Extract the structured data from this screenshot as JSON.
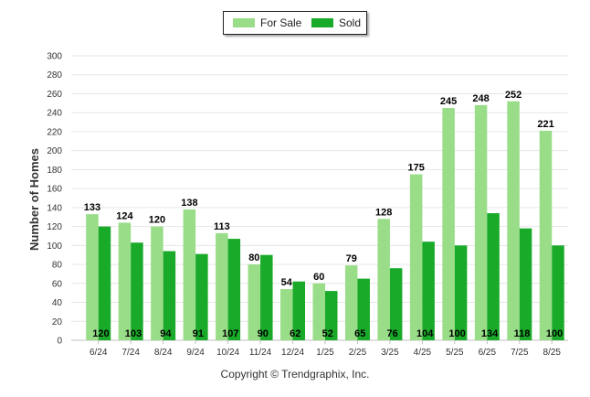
{
  "chart_data": {
    "type": "bar",
    "categories": [
      "6/24",
      "7/24",
      "8/24",
      "9/24",
      "10/24",
      "11/24",
      "12/24",
      "1/25",
      "2/25",
      "3/25",
      "4/25",
      "5/25",
      "6/25",
      "7/25",
      "8/25"
    ],
    "series": [
      {
        "name": "For Sale",
        "color": "#99dd88",
        "values": [
          133,
          124,
          120,
          138,
          113,
          80,
          54,
          60,
          79,
          128,
          175,
          245,
          248,
          252,
          221
        ]
      },
      {
        "name": "Sold",
        "color": "#1aaa2a",
        "values": [
          120,
          103,
          94,
          91,
          107,
          90,
          62,
          52,
          65,
          76,
          104,
          100,
          134,
          118,
          100
        ]
      }
    ],
    "ylabel": "Number of Homes",
    "xlabel": "",
    "ylim": [
      0,
      300
    ],
    "yticks": [
      0,
      20,
      40,
      60,
      80,
      100,
      120,
      140,
      160,
      180,
      200,
      220,
      240,
      260,
      280,
      300
    ],
    "grid": true,
    "legend": "top-center"
  },
  "footer": {
    "copyright": "Copyright © Trendgraphix, Inc."
  }
}
